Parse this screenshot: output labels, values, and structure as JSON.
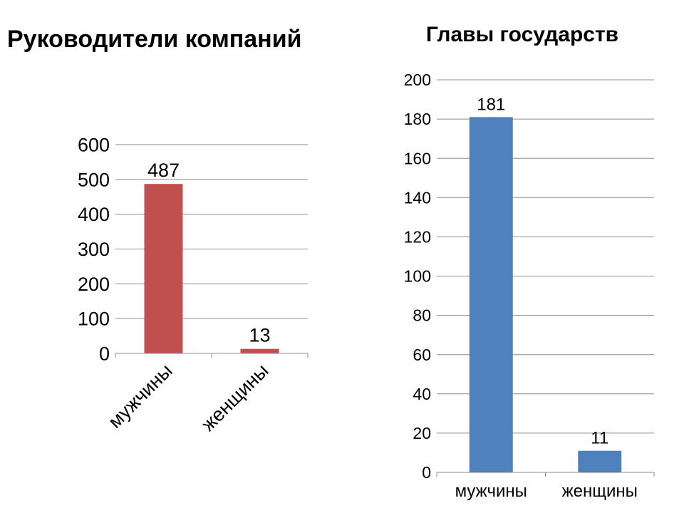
{
  "chart_data": [
    {
      "type": "bar",
      "title": "Руководители компаний",
      "categories": [
        "мужчины",
        "женщины"
      ],
      "values": [
        487,
        13
      ],
      "data_labels": [
        "487",
        "13"
      ],
      "yticks": [
        "0",
        "100",
        "200",
        "300",
        "400",
        "500",
        "600"
      ],
      "ylim": [
        0,
        600
      ],
      "color": "#c0504d",
      "grid": true,
      "legend": "none",
      "xlabel_rotation_deg": -45
    },
    {
      "type": "bar",
      "title": "Главы государств",
      "categories": [
        "мужчины",
        "женщины"
      ],
      "values": [
        181,
        11
      ],
      "data_labels": [
        "181",
        "11"
      ],
      "yticks": [
        "0",
        "20",
        "40",
        "60",
        "80",
        "100",
        "120",
        "140",
        "160",
        "180",
        "200"
      ],
      "ylim": [
        0,
        200
      ],
      "color": "#4f81bd",
      "grid": true,
      "legend": "none",
      "xlabel_rotation_deg": 0
    }
  ]
}
